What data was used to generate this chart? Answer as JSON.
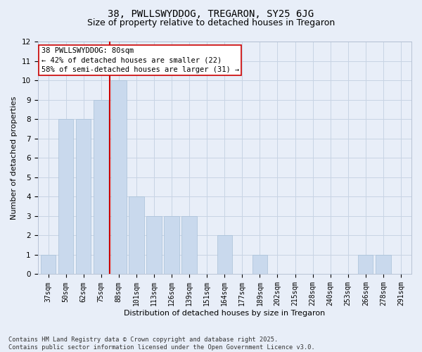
{
  "title_line1": "38, PWLLSWYDDOG, TREGARON, SY25 6JG",
  "title_line2": "Size of property relative to detached houses in Tregaron",
  "xlabel": "Distribution of detached houses by size in Tregaron",
  "ylabel": "Number of detached properties",
  "categories": [
    "37sqm",
    "50sqm",
    "62sqm",
    "75sqm",
    "88sqm",
    "101sqm",
    "113sqm",
    "126sqm",
    "139sqm",
    "151sqm",
    "164sqm",
    "177sqm",
    "189sqm",
    "202sqm",
    "215sqm",
    "228sqm",
    "240sqm",
    "253sqm",
    "266sqm",
    "278sqm",
    "291sqm"
  ],
  "values": [
    1,
    8,
    8,
    9,
    10,
    4,
    3,
    3,
    3,
    0,
    2,
    0,
    1,
    0,
    0,
    0,
    0,
    0,
    1,
    1,
    0
  ],
  "bar_color": "#c9d9ed",
  "bar_edge_color": "#a8c0d8",
  "grid_color": "#c8d4e4",
  "background_color": "#e8eef8",
  "vline_color": "#cc0000",
  "vline_pos": 3.5,
  "annotation_text": "38 PWLLSWYDDOG: 80sqm\n← 42% of detached houses are smaller (22)\n58% of semi-detached houses are larger (31) →",
  "annotation_box_color": "#ffffff",
  "annotation_box_edge": "#cc0000",
  "ylim": [
    0,
    12
  ],
  "yticks": [
    0,
    1,
    2,
    3,
    4,
    5,
    6,
    7,
    8,
    9,
    10,
    11,
    12
  ],
  "footnote": "Contains HM Land Registry data © Crown copyright and database right 2025.\nContains public sector information licensed under the Open Government Licence v3.0.",
  "title_fontsize": 10,
  "subtitle_fontsize": 9,
  "tick_fontsize": 7,
  "label_fontsize": 8,
  "annotation_fontsize": 7.5
}
